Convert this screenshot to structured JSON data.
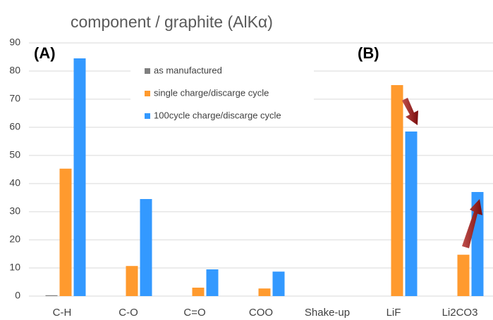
{
  "chart_data": {
    "type": "bar",
    "title": "component / graphite (AlKα)",
    "annotations": [
      "(A)",
      "(B)"
    ],
    "categories": [
      "C-H",
      "C-O",
      "C=O",
      "COO",
      "Shake-up",
      "LiF",
      "Li2CO3"
    ],
    "series": [
      {
        "name": "as manufactured",
        "color": "#7f7f7f",
        "values": [
          0.3,
          0,
          0,
          0,
          0,
          0,
          0
        ]
      },
      {
        "name": "single charge/discarge cycle",
        "color": "#ff9a2e",
        "values": [
          45.3,
          10.7,
          3,
          2.7,
          0,
          75,
          14.7
        ]
      },
      {
        "name": "100cycle charge/discarge cycle",
        "color": "#3399ff",
        "values": [
          84.5,
          34.5,
          9.5,
          8.7,
          0,
          58.5,
          37
        ]
      }
    ],
    "ylim": [
      0,
      90
    ],
    "yticks": [
      0,
      10,
      20,
      30,
      40,
      50,
      60,
      70,
      80,
      90
    ],
    "grid": true
  }
}
